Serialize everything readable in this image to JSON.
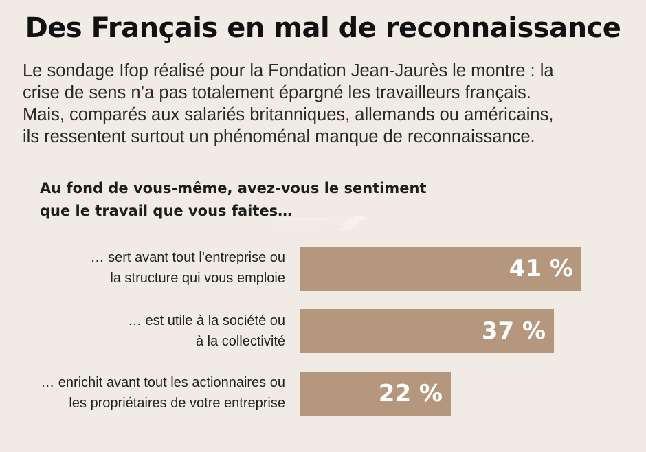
{
  "header": {
    "title": "Des Français en mal de reconnaissance",
    "intro_lines": [
      "Le sondage Ifop réalisé pour la Fondation Jean-Jaurès le montre : la",
      "crise de sens n’a pas totalement épargné les travailleurs français.",
      "Mais, comparés aux salariés britanniques, allemands ou américains,",
      "ils ressentent surtout un phénoménal manque de reconnaissance."
    ]
  },
  "question_lines": [
    "Au fond de vous-même, avez-vous le sentiment",
    "que le travail que vous faites…"
  ],
  "colors": {
    "background": "#f0ebe5",
    "bar": "#b5977e",
    "bar_text": "#ffffff"
  },
  "chart_data": {
    "type": "bar",
    "orientation": "horizontal",
    "title": "Au fond de vous-même, avez-vous le sentiment que le travail que vous faites…",
    "categories": [
      "… sert avant tout l’entreprise ou la structure qui vous emploie",
      "… est utile à la société ou à la collectivité",
      "… enrichit avant tout les actionnaires ou les propriétaires de votre entreprise"
    ],
    "category_lines": [
      [
        "… sert avant tout l’entreprise ou",
        "la structure qui vous emploie"
      ],
      [
        "… est utile à la société ou",
        "à la collectivité"
      ],
      [
        "… enrichit avant tout les actionnaires ou",
        "les propriétaires de votre entreprise"
      ]
    ],
    "values": [
      41,
      37,
      22
    ],
    "value_labels": [
      "41 %",
      "37 %",
      "22 %"
    ],
    "unit": "%",
    "xlim": [
      0,
      100
    ],
    "grid": false,
    "legend": "none"
  }
}
